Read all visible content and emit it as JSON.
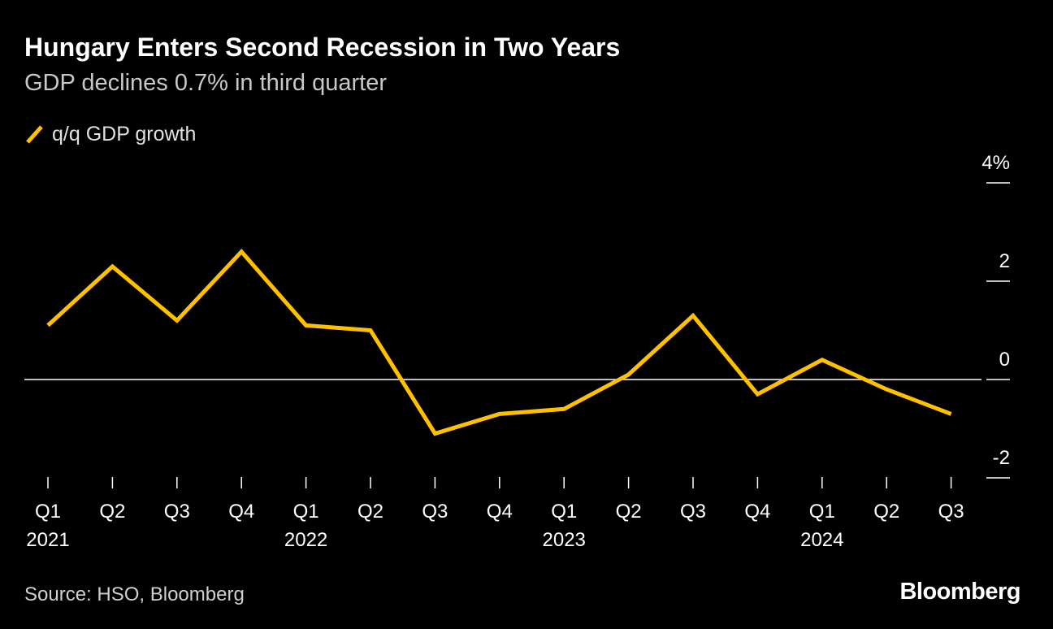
{
  "chart_data": {
    "type": "line",
    "title": "Hungary Enters Second Recession in Two Years",
    "subtitle": "GDP declines 0.7% in third quarter",
    "categories": [
      "Q1",
      "Q2",
      "Q3",
      "Q4",
      "Q1",
      "Q2",
      "Q3",
      "Q4",
      "Q1",
      "Q2",
      "Q3",
      "Q4",
      "Q1",
      "Q2",
      "Q3"
    ],
    "years": [
      {
        "label": "2021",
        "index": 0
      },
      {
        "label": "2022",
        "index": 4
      },
      {
        "label": "2023",
        "index": 8
      },
      {
        "label": "2024",
        "index": 12
      }
    ],
    "series": [
      {
        "name": "q/q GDP growth",
        "color": "#FFC000",
        "values": [
          1.1,
          2.3,
          1.2,
          2.6,
          1.1,
          1.0,
          -1.1,
          -0.7,
          -0.6,
          0.1,
          1.3,
          -0.3,
          0.4,
          -0.2,
          -0.7
        ]
      }
    ],
    "ylim": [
      -2,
      4
    ],
    "yticks": [
      {
        "value": 4,
        "label": "4%"
      },
      {
        "value": 2,
        "label": "2"
      },
      {
        "value": 0,
        "label": "0"
      },
      {
        "value": -2,
        "label": "-2"
      }
    ],
    "xlabel": "",
    "ylabel": "",
    "legend_position": "top-left"
  },
  "footer": {
    "source": "Source: HSO, Bloomberg",
    "brand": "Bloomberg"
  },
  "colors": {
    "background": "#000000",
    "line": "#FFC000",
    "axis": "#ffffff"
  }
}
